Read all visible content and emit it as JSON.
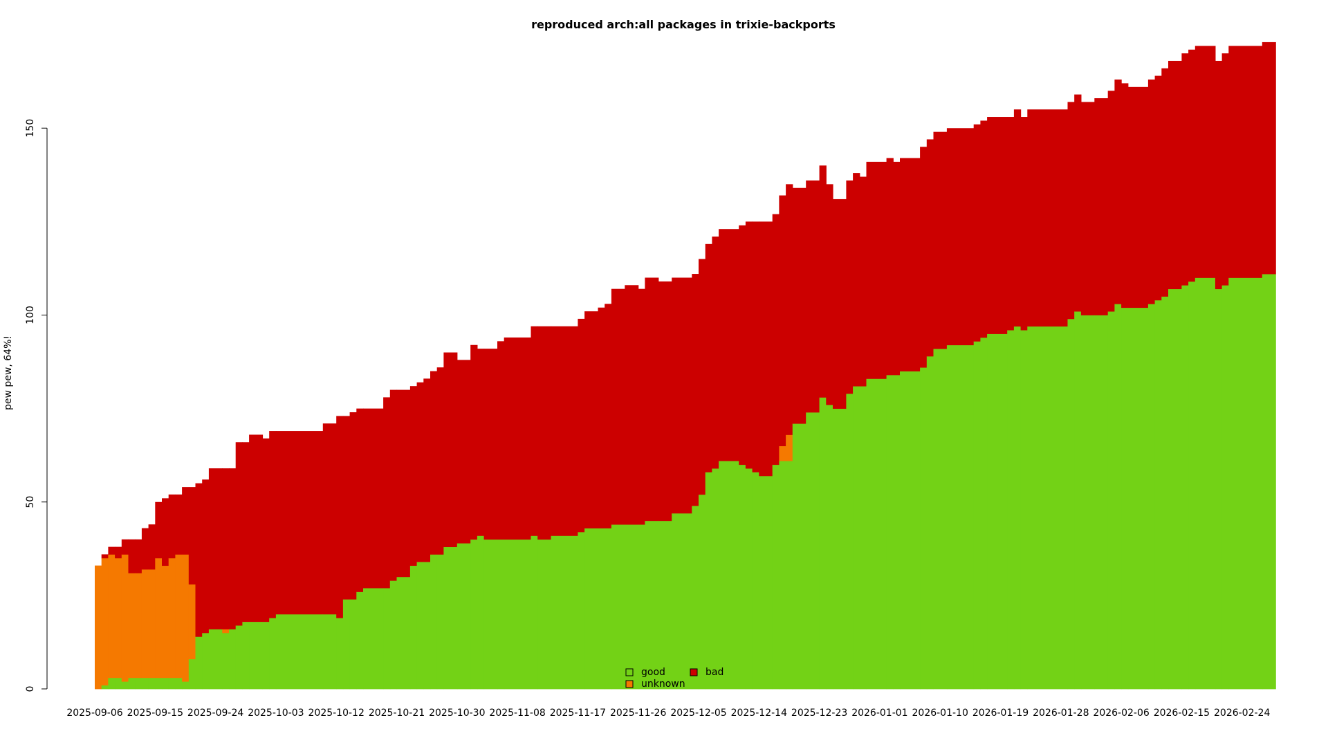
{
  "chart_data": {
    "type": "area",
    "title": "reproduced arch:all packages in trixie-backports",
    "ylabel": "pew pew, 64%!",
    "xlabel": "",
    "x_start": "2025-09-06",
    "x_end": "2026-03-01",
    "ylim": [
      0,
      172
    ],
    "y_ticks": [
      0,
      50,
      100,
      150
    ],
    "x_tick_labels": [
      "2025-09-06",
      "2025-09-15",
      "2025-09-24",
      "2025-10-03",
      "2025-10-12",
      "2025-10-21",
      "2025-10-30",
      "2025-11-08",
      "2025-11-17",
      "2025-11-26",
      "2025-12-05",
      "2025-12-14",
      "2025-12-23",
      "2026-01-01",
      "2026-01-10",
      "2026-01-19",
      "2026-01-28",
      "2026-02-06",
      "2026-02-15",
      "2026-02-24"
    ],
    "stacked": true,
    "legend_position": "bottom-center",
    "series": [
      {
        "name": "good",
        "color": "#73d216"
      },
      {
        "name": "unknown",
        "color": "#f57900"
      },
      {
        "name": "bad",
        "color": "#cc0000"
      }
    ],
    "points": [
      {
        "x": "2025-09-06",
        "good": 0,
        "unknown": 33,
        "bad": 0
      },
      {
        "x": "2025-09-07",
        "good": 1,
        "unknown": 34,
        "bad": 1
      },
      {
        "x": "2025-09-08",
        "good": 3,
        "unknown": 33,
        "bad": 2
      },
      {
        "x": "2025-09-09",
        "good": 3,
        "unknown": 32,
        "bad": 3
      },
      {
        "x": "2025-09-10",
        "good": 2,
        "unknown": 34,
        "bad": 4
      },
      {
        "x": "2025-09-11",
        "good": 3,
        "unknown": 28,
        "bad": 9
      },
      {
        "x": "2025-09-12",
        "good": 3,
        "unknown": 28,
        "bad": 9
      },
      {
        "x": "2025-09-13",
        "good": 3,
        "unknown": 29,
        "bad": 11
      },
      {
        "x": "2025-09-14",
        "good": 3,
        "unknown": 29,
        "bad": 12
      },
      {
        "x": "2025-09-15",
        "good": 3,
        "unknown": 32,
        "bad": 15
      },
      {
        "x": "2025-09-16",
        "good": 3,
        "unknown": 30,
        "bad": 18
      },
      {
        "x": "2025-09-17",
        "good": 3,
        "unknown": 32,
        "bad": 17
      },
      {
        "x": "2025-09-18",
        "good": 3,
        "unknown": 33,
        "bad": 16
      },
      {
        "x": "2025-09-19",
        "good": 2,
        "unknown": 34,
        "bad": 18
      },
      {
        "x": "2025-09-20",
        "good": 8,
        "unknown": 20,
        "bad": 26
      },
      {
        "x": "2025-09-21",
        "good": 14,
        "unknown": 0,
        "bad": 41
      },
      {
        "x": "2025-09-22",
        "good": 15,
        "unknown": 0,
        "bad": 41
      },
      {
        "x": "2025-09-23",
        "good": 16,
        "unknown": 0,
        "bad": 43
      },
      {
        "x": "2025-09-25",
        "good": 15,
        "unknown": 1,
        "bad": 43
      },
      {
        "x": "2025-09-26",
        "good": 16,
        "unknown": 0,
        "bad": 43
      },
      {
        "x": "2025-09-27",
        "good": 17,
        "unknown": 0,
        "bad": 49
      },
      {
        "x": "2025-09-28",
        "good": 18,
        "unknown": 0,
        "bad": 48
      },
      {
        "x": "2025-09-29",
        "good": 18,
        "unknown": 0,
        "bad": 50
      },
      {
        "x": "2025-10-01",
        "good": 18,
        "unknown": 0,
        "bad": 49
      },
      {
        "x": "2025-10-02",
        "good": 19,
        "unknown": 0,
        "bad": 50
      },
      {
        "x": "2025-10-03",
        "good": 20,
        "unknown": 0,
        "bad": 49
      },
      {
        "x": "2025-10-10",
        "good": 20,
        "unknown": 0,
        "bad": 51
      },
      {
        "x": "2025-10-12",
        "good": 19,
        "unknown": 0,
        "bad": 54
      },
      {
        "x": "2025-10-13",
        "good": 24,
        "unknown": 0,
        "bad": 49
      },
      {
        "x": "2025-10-14",
        "good": 24,
        "unknown": 0,
        "bad": 50
      },
      {
        "x": "2025-10-15",
        "good": 26,
        "unknown": 0,
        "bad": 49
      },
      {
        "x": "2025-10-16",
        "good": 27,
        "unknown": 0,
        "bad": 48
      },
      {
        "x": "2025-10-19",
        "good": 27,
        "unknown": 0,
        "bad": 51
      },
      {
        "x": "2025-10-20",
        "good": 29,
        "unknown": 0,
        "bad": 51
      },
      {
        "x": "2025-10-21",
        "good": 30,
        "unknown": 0,
        "bad": 50
      },
      {
        "x": "2025-10-23",
        "good": 33,
        "unknown": 0,
        "bad": 48
      },
      {
        "x": "2025-10-24",
        "good": 34,
        "unknown": 0,
        "bad": 48
      },
      {
        "x": "2025-10-25",
        "good": 34,
        "unknown": 0,
        "bad": 49
      },
      {
        "x": "2025-10-26",
        "good": 36,
        "unknown": 0,
        "bad": 49
      },
      {
        "x": "2025-10-27",
        "good": 36,
        "unknown": 0,
        "bad": 50
      },
      {
        "x": "2025-10-28",
        "good": 38,
        "unknown": 0,
        "bad": 52
      },
      {
        "x": "2025-10-30",
        "good": 39,
        "unknown": 0,
        "bad": 49
      },
      {
        "x": "2025-11-01",
        "good": 40,
        "unknown": 0,
        "bad": 52
      },
      {
        "x": "2025-11-02",
        "good": 41,
        "unknown": 0,
        "bad": 50
      },
      {
        "x": "2025-11-03",
        "good": 40,
        "unknown": 0,
        "bad": 51
      },
      {
        "x": "2025-11-05",
        "good": 40,
        "unknown": 0,
        "bad": 53
      },
      {
        "x": "2025-11-06",
        "good": 40,
        "unknown": 0,
        "bad": 54
      },
      {
        "x": "2025-11-10",
        "good": 41,
        "unknown": 0,
        "bad": 56
      },
      {
        "x": "2025-11-11",
        "good": 40,
        "unknown": 0,
        "bad": 57
      },
      {
        "x": "2025-11-13",
        "good": 41,
        "unknown": 0,
        "bad": 56
      },
      {
        "x": "2025-11-17",
        "good": 42,
        "unknown": 0,
        "bad": 57
      },
      {
        "x": "2025-11-18",
        "good": 43,
        "unknown": 0,
        "bad": 58
      },
      {
        "x": "2025-11-20",
        "good": 43,
        "unknown": 0,
        "bad": 59
      },
      {
        "x": "2025-11-21",
        "good": 43,
        "unknown": 0,
        "bad": 60
      },
      {
        "x": "2025-11-22",
        "good": 44,
        "unknown": 0,
        "bad": 63
      },
      {
        "x": "2025-11-24",
        "good": 44,
        "unknown": 0,
        "bad": 64
      },
      {
        "x": "2025-11-26",
        "good": 44,
        "unknown": 0,
        "bad": 63
      },
      {
        "x": "2025-11-27",
        "good": 45,
        "unknown": 0,
        "bad": 65
      },
      {
        "x": "2025-11-29",
        "good": 45,
        "unknown": 0,
        "bad": 64
      },
      {
        "x": "2025-12-01",
        "good": 47,
        "unknown": 0,
        "bad": 63
      },
      {
        "x": "2025-12-04",
        "good": 49,
        "unknown": 0,
        "bad": 62
      },
      {
        "x": "2025-12-05",
        "good": 52,
        "unknown": 0,
        "bad": 63
      },
      {
        "x": "2025-12-06",
        "good": 58,
        "unknown": 0,
        "bad": 61
      },
      {
        "x": "2025-12-07",
        "good": 59,
        "unknown": 0,
        "bad": 62
      },
      {
        "x": "2025-12-08",
        "good": 61,
        "unknown": 0,
        "bad": 62
      },
      {
        "x": "2025-12-11",
        "good": 60,
        "unknown": 0,
        "bad": 64
      },
      {
        "x": "2025-12-12",
        "good": 59,
        "unknown": 0,
        "bad": 66
      },
      {
        "x": "2025-12-13",
        "good": 58,
        "unknown": 0,
        "bad": 67
      },
      {
        "x": "2025-12-14",
        "good": 57,
        "unknown": 0,
        "bad": 68
      },
      {
        "x": "2025-12-16",
        "good": 60,
        "unknown": 0,
        "bad": 67
      },
      {
        "x": "2025-12-17",
        "good": 61,
        "unknown": 4,
        "bad": 67
      },
      {
        "x": "2025-12-18",
        "good": 61,
        "unknown": 7,
        "bad": 67
      },
      {
        "x": "2025-12-19",
        "good": 71,
        "unknown": 0,
        "bad": 63
      },
      {
        "x": "2025-12-21",
        "good": 74,
        "unknown": 0,
        "bad": 62
      },
      {
        "x": "2025-12-23",
        "good": 78,
        "unknown": 0,
        "bad": 62
      },
      {
        "x": "2025-12-24",
        "good": 76,
        "unknown": 0,
        "bad": 59
      },
      {
        "x": "2025-12-25",
        "good": 75,
        "unknown": 0,
        "bad": 56
      },
      {
        "x": "2025-12-27",
        "good": 79,
        "unknown": 0,
        "bad": 57
      },
      {
        "x": "2025-12-28",
        "good": 81,
        "unknown": 0,
        "bad": 57
      },
      {
        "x": "2025-12-29",
        "good": 81,
        "unknown": 0,
        "bad": 56
      },
      {
        "x": "2025-12-30",
        "good": 83,
        "unknown": 0,
        "bad": 58
      },
      {
        "x": "2026-01-02",
        "good": 84,
        "unknown": 0,
        "bad": 58
      },
      {
        "x": "2026-01-03",
        "good": 84,
        "unknown": 0,
        "bad": 57
      },
      {
        "x": "2026-01-04",
        "good": 85,
        "unknown": 0,
        "bad": 57
      },
      {
        "x": "2026-01-07",
        "good": 86,
        "unknown": 0,
        "bad": 59
      },
      {
        "x": "2026-01-08",
        "good": 89,
        "unknown": 0,
        "bad": 58
      },
      {
        "x": "2026-01-09",
        "good": 91,
        "unknown": 0,
        "bad": 58
      },
      {
        "x": "2026-01-11",
        "good": 92,
        "unknown": 0,
        "bad": 58
      },
      {
        "x": "2026-01-15",
        "good": 93,
        "unknown": 0,
        "bad": 58
      },
      {
        "x": "2026-01-16",
        "good": 94,
        "unknown": 0,
        "bad": 58
      },
      {
        "x": "2026-01-17",
        "good": 95,
        "unknown": 0,
        "bad": 58
      },
      {
        "x": "2026-01-20",
        "good": 96,
        "unknown": 0,
        "bad": 57
      },
      {
        "x": "2026-01-21",
        "good": 97,
        "unknown": 0,
        "bad": 58
      },
      {
        "x": "2026-01-22",
        "good": 96,
        "unknown": 0,
        "bad": 57
      },
      {
        "x": "2026-01-23",
        "good": 97,
        "unknown": 0,
        "bad": 58
      },
      {
        "x": "2026-01-29",
        "good": 99,
        "unknown": 0,
        "bad": 58
      },
      {
        "x": "2026-01-30",
        "good": 101,
        "unknown": 0,
        "bad": 58
      },
      {
        "x": "2026-01-31",
        "good": 100,
        "unknown": 0,
        "bad": 57
      },
      {
        "x": "2026-02-02",
        "good": 100,
        "unknown": 0,
        "bad": 58
      },
      {
        "x": "2026-02-04",
        "good": 101,
        "unknown": 0,
        "bad": 59
      },
      {
        "x": "2026-02-05",
        "good": 103,
        "unknown": 0,
        "bad": 60
      },
      {
        "x": "2026-02-06",
        "good": 102,
        "unknown": 0,
        "bad": 60
      },
      {
        "x": "2026-02-07",
        "good": 102,
        "unknown": 0,
        "bad": 59
      },
      {
        "x": "2026-02-10",
        "good": 103,
        "unknown": 0,
        "bad": 60
      },
      {
        "x": "2026-02-11",
        "good": 104,
        "unknown": 0,
        "bad": 60
      },
      {
        "x": "2026-02-12",
        "good": 105,
        "unknown": 0,
        "bad": 61
      },
      {
        "x": "2026-02-13",
        "good": 107,
        "unknown": 0,
        "bad": 61
      },
      {
        "x": "2026-02-15",
        "good": 108,
        "unknown": 0,
        "bad": 62
      },
      {
        "x": "2026-02-16",
        "good": 109,
        "unknown": 0,
        "bad": 62
      },
      {
        "x": "2026-02-17",
        "good": 110,
        "unknown": 0,
        "bad": 62
      },
      {
        "x": "2026-02-20",
        "good": 107,
        "unknown": 0,
        "bad": 61
      },
      {
        "x": "2026-02-21",
        "good": 108,
        "unknown": 0,
        "bad": 62
      },
      {
        "x": "2026-02-22",
        "good": 110,
        "unknown": 0,
        "bad": 62
      },
      {
        "x": "2026-02-27",
        "good": 111,
        "unknown": 0,
        "bad": 62
      }
    ]
  }
}
